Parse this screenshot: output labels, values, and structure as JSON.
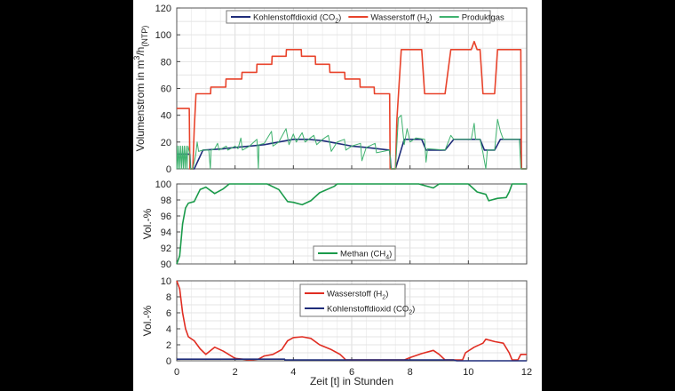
{
  "chart_data": [
    {
      "type": "line",
      "ylabel_parts": [
        "Volumenstrom in m",
        "3",
        "/h",
        "(NTP)"
      ],
      "ylim": [
        0,
        120
      ],
      "yticks": [
        0,
        20,
        40,
        60,
        80,
        100,
        120
      ],
      "xlim": [
        0,
        12
      ],
      "grid": true,
      "legend": "top-center",
      "series": [
        {
          "name": "Kohlenstoffdioxid (CO",
          "name_sub": "2",
          "name_end": ")",
          "color": "#1f2d7a",
          "x": [
            0,
            0.45,
            0.47,
            0.6,
            0.9,
            1.6,
            2.0,
            2.5,
            3.0,
            3.5,
            4.0,
            4.5,
            5.0,
            5.5,
            6.0,
            6.5,
            7.3,
            7.35,
            7.5,
            7.8,
            8.4,
            8.55,
            9.2,
            9.5,
            10.4,
            10.55,
            10.9,
            11.1,
            11.8,
            11.82,
            12
          ],
          "y": [
            11,
            11,
            0,
            0,
            14,
            15,
            16,
            17,
            18,
            20,
            22,
            22,
            21,
            19,
            17,
            16,
            14,
            0,
            0,
            22,
            22,
            14,
            14,
            22,
            22,
            14,
            14,
            22,
            22,
            0,
            0
          ]
        },
        {
          "name": "Wasserstoff (H",
          "name_sub": "2",
          "name_end": ")",
          "color": "#e8432b",
          "x": [
            0,
            0.43,
            0.45,
            0.55,
            0.6,
            0.66,
            1.16,
            1.17,
            1.68,
            1.69,
            2.23,
            2.24,
            2.74,
            2.75,
            3.26,
            3.27,
            3.75,
            3.76,
            4.27,
            4.28,
            4.75,
            4.76,
            5.24,
            5.25,
            5.76,
            5.77,
            6.28,
            6.29,
            6.77,
            6.78,
            7.3,
            7.32,
            7.5,
            7.55,
            7.7,
            8.4,
            8.5,
            9.2,
            9.4,
            10.1,
            10.2,
            10.3,
            10.4,
            10.5,
            10.9,
            11.0,
            11.8,
            11.82,
            12
          ],
          "y": [
            45,
            45,
            0,
            0,
            30,
            56,
            56,
            61,
            61,
            67,
            67,
            72,
            72,
            78,
            78,
            84,
            84,
            89,
            89,
            84,
            84,
            78,
            78,
            72,
            72,
            67,
            67,
            61,
            61,
            56,
            56,
            0,
            0,
            37,
            89,
            89,
            56,
            56,
            89,
            89,
            95,
            89,
            89,
            56,
            56,
            89,
            89,
            0,
            0
          ]
        },
        {
          "name": "Produktgas",
          "color": "#3fb26f",
          "x": [
            0,
            0.02,
            0.05,
            0.08,
            0.11,
            0.14,
            0.17,
            0.2,
            0.23,
            0.26,
            0.29,
            0.32,
            0.35,
            0.38,
            0.45,
            0.47,
            0.55,
            0.65,
            0.7,
            0.75,
            0.9,
            1.1,
            1.15,
            1.18,
            1.3,
            1.4,
            1.45,
            1.7,
            1.75,
            2.0,
            2.1,
            2.2,
            2.25,
            2.5,
            2.55,
            2.75,
            2.8,
            2.82,
            3.0,
            3.25,
            3.3,
            3.5,
            3.75,
            3.85,
            4.0,
            4.1,
            4.3,
            4.4,
            4.7,
            4.8,
            5.0,
            5.2,
            5.3,
            5.5,
            5.75,
            5.8,
            6.0,
            6.3,
            6.35,
            6.5,
            6.8,
            6.85,
            7.3,
            7.35,
            7.5,
            7.6,
            7.7,
            7.8,
            7.9,
            8.0,
            8.2,
            8.5,
            8.55,
            8.6,
            9.2,
            9.4,
            9.5,
            10.1,
            10.2,
            10.25,
            10.4,
            10.5,
            10.6,
            10.65,
            10.9,
            11.0,
            11.1,
            11.2,
            11.75,
            11.8,
            12
          ],
          "y": [
            0,
            17,
            0,
            17,
            0,
            17,
            0,
            17,
            0,
            17,
            0,
            17,
            0,
            17,
            11,
            0,
            0,
            10,
            20,
            13,
            14,
            14,
            0,
            14,
            15,
            19,
            14,
            17,
            14,
            17,
            15,
            23,
            14,
            17,
            18,
            22,
            0,
            18,
            19,
            28,
            17,
            20,
            30,
            18,
            26,
            20,
            27,
            20,
            25,
            18,
            22,
            25,
            13,
            20,
            22,
            14,
            17,
            19,
            6,
            16,
            19,
            12,
            14,
            0,
            0,
            38,
            40,
            18,
            30,
            20,
            23,
            22,
            5,
            15,
            14,
            25,
            22,
            22,
            34,
            22,
            22,
            12,
            0,
            14,
            14,
            37,
            28,
            22,
            22,
            0,
            0
          ]
        }
      ]
    },
    {
      "type": "line",
      "ylabel": "Vol.-%",
      "ylim": [
        90,
        100
      ],
      "yticks": [
        90,
        92,
        94,
        96,
        98,
        100
      ],
      "xlim": [
        0,
        12
      ],
      "grid": true,
      "legend": "bottom-center",
      "series": [
        {
          "name": "Methan (CH",
          "name_sub": "4",
          "name_end": ")",
          "color": "#1a9a4a",
          "x": [
            0,
            0.1,
            0.2,
            0.3,
            0.4,
            0.6,
            0.8,
            1.0,
            1.3,
            1.6,
            1.8,
            3.1,
            3.5,
            3.8,
            4.0,
            4.3,
            4.6,
            4.9,
            5.4,
            5.5,
            8.3,
            8.8,
            9.0,
            10.0,
            10.3,
            10.6,
            10.7,
            11.0,
            11.3,
            11.4,
            11.5,
            12
          ],
          "y": [
            90,
            91,
            95,
            97,
            97.6,
            97.8,
            99.3,
            99.6,
            98.8,
            99.4,
            100,
            100,
            99.3,
            97.8,
            97.7,
            97.4,
            97.9,
            98.9,
            99.7,
            100,
            100,
            99.5,
            100,
            100,
            99,
            98.7,
            97.9,
            98.2,
            98.3,
            99,
            100,
            100
          ]
        }
      ]
    },
    {
      "type": "line",
      "ylabel": "Vol.-%",
      "xlabel": "Zeit [t] in Stunden",
      "ylim": [
        0,
        10
      ],
      "yticks": [
        0,
        2,
        4,
        6,
        8,
        10
      ],
      "xlim": [
        0,
        12
      ],
      "xticks": [
        0,
        2,
        4,
        6,
        8,
        10,
        12
      ],
      "grid": true,
      "legend": "top-center",
      "series": [
        {
          "name": "Wasserstoff (H",
          "name_sub": "2",
          "name_end": ")",
          "color": "#e02d22",
          "x": [
            0,
            0.1,
            0.2,
            0.3,
            0.4,
            0.6,
            0.8,
            1.0,
            1.3,
            1.6,
            2.0,
            2.5,
            2.8,
            3.0,
            3.3,
            3.6,
            3.8,
            4.0,
            4.3,
            4.6,
            4.9,
            5.3,
            5.6,
            5.8,
            7.8,
            8.0,
            8.4,
            8.8,
            9.0,
            9.2,
            9.8,
            9.9,
            10.2,
            10.5,
            10.6,
            10.9,
            11.2,
            11.4,
            11.5,
            11.7,
            11.8,
            12
          ],
          "y": [
            10,
            9,
            6,
            4,
            3,
            2.5,
            1.5,
            0.8,
            1.7,
            1.2,
            0.3,
            0.1,
            0.2,
            0.6,
            0.8,
            1.4,
            2.5,
            2.9,
            3.0,
            2.8,
            2.0,
            1.4,
            0.8,
            0.1,
            0.1,
            0.4,
            0.9,
            1.3,
            0.8,
            0.1,
            0.1,
            1.0,
            1.7,
            2.2,
            2.7,
            2.4,
            2.2,
            1.0,
            0.1,
            0.1,
            0.8,
            0.8
          ]
        },
        {
          "name": "Kohlenstoffdioxid (CO",
          "name_sub": "2",
          "name_end": ")",
          "color": "#1f2d7a",
          "x": [
            0,
            3.7,
            3.71,
            9.5,
            9.6,
            12
          ],
          "y": [
            0.2,
            0.2,
            0.1,
            0.1,
            0,
            0
          ]
        }
      ]
    }
  ]
}
